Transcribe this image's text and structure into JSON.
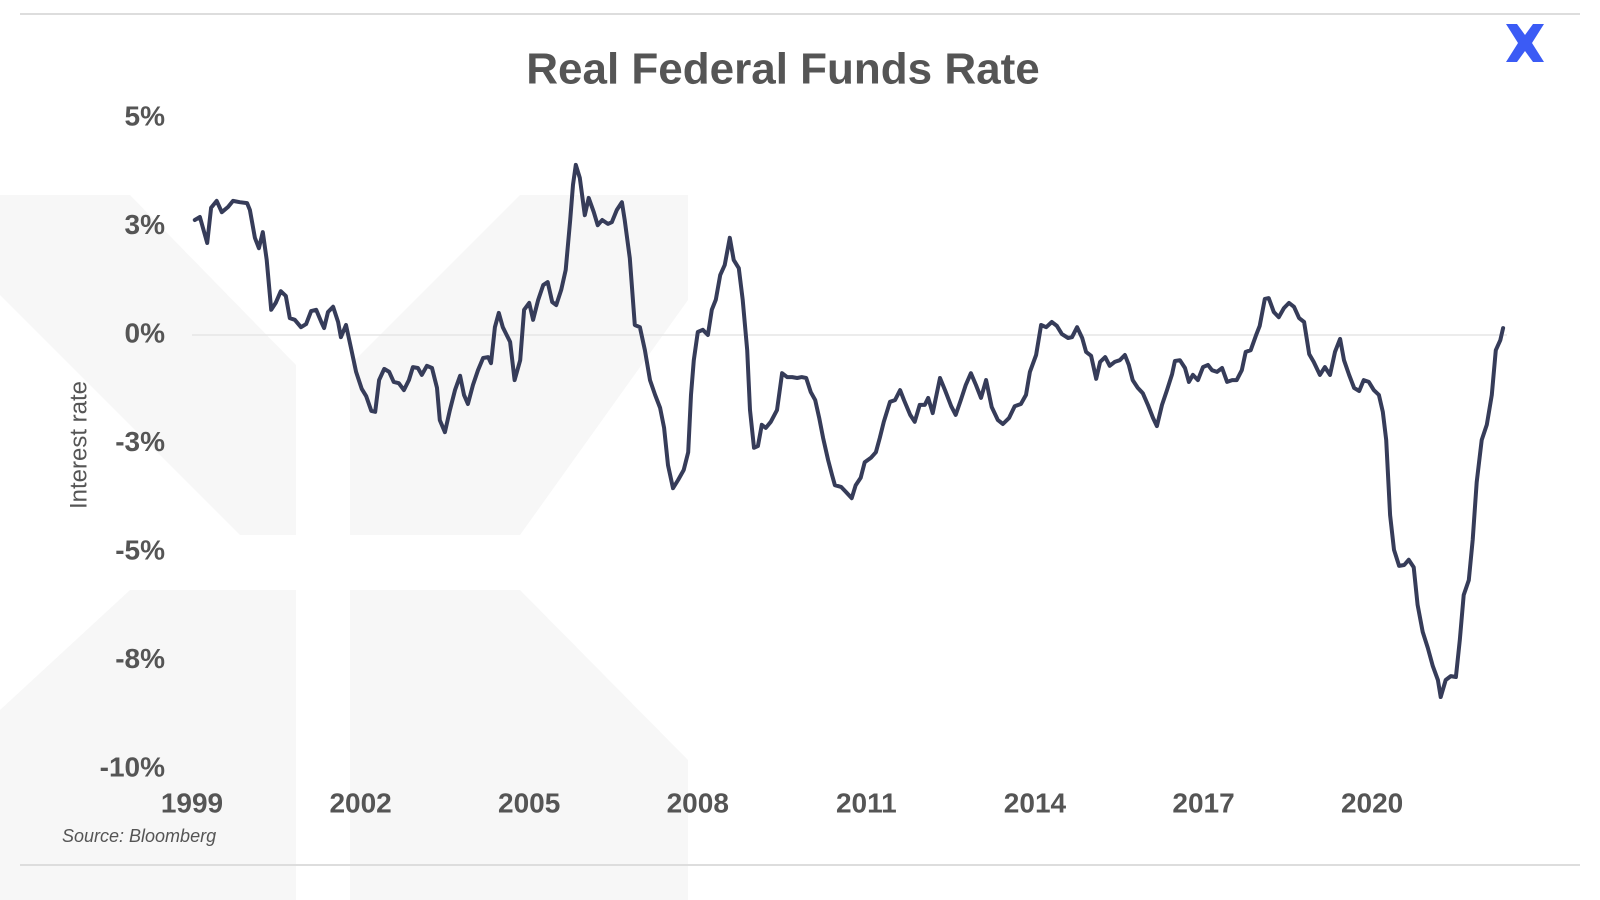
{
  "chart_data": {
    "type": "line",
    "title": "Real Federal Funds Rate",
    "y_label": "Interest rate",
    "source": "Source: Bloomberg",
    "color": "#363c59",
    "zero_line": true,
    "grid": false,
    "xlim": [
      1999,
      2022.4
    ],
    "xticks": [
      1999,
      2002,
      2005,
      2008,
      2011,
      2014,
      2017,
      2020
    ],
    "ylim": [
      -10,
      5
    ],
    "yticks": [
      {
        "value": 5,
        "label": "5%"
      },
      {
        "value": 2.5,
        "label": "3%"
      },
      {
        "value": 0,
        "label": "0%"
      },
      {
        "value": -2.5,
        "label": "-3%"
      },
      {
        "value": -5,
        "label": "-5%"
      },
      {
        "value": -7.5,
        "label": "-8%"
      },
      {
        "value": -10,
        "label": "-10%"
      }
    ],
    "x": [
      1999.05,
      1999.14,
      1999.27,
      1999.34,
      1999.44,
      1999.53,
      1999.64,
      1999.73,
      1999.85,
      1999.98,
      2000.03,
      2000.12,
      2000.19,
      2000.26,
      2000.33,
      2000.41,
      2000.49,
      2000.58,
      2000.67,
      2000.74,
      2000.83,
      2000.94,
      2001.03,
      2001.12,
      2001.21,
      2001.3,
      2001.35,
      2001.42,
      2001.51,
      2001.6,
      2001.65,
      2001.74,
      2001.83,
      2001.92,
      2002.02,
      2002.1,
      2002.19,
      2002.26,
      2002.33,
      2002.42,
      2002.51,
      2002.59,
      2002.68,
      2002.77,
      2002.86,
      2002.93,
      2003.02,
      2003.09,
      2003.18,
      2003.27,
      2003.36,
      2003.41,
      2003.5,
      2003.59,
      2003.68,
      2003.77,
      2003.84,
      2003.91,
      2004.0,
      2004.09,
      2004.18,
      2004.27,
      2004.32,
      2004.39,
      2004.46,
      2004.53,
      2004.66,
      2004.74,
      2004.84,
      2004.91,
      2005.0,
      2005.07,
      2005.16,
      2005.25,
      2005.33,
      2005.41,
      2005.48,
      2005.57,
      2005.65,
      2005.73,
      2005.78,
      2005.83,
      2005.9,
      2005.99,
      2006.06,
      2006.15,
      2006.22,
      2006.3,
      2006.4,
      2006.47,
      2006.56,
      2006.65,
      2006.7,
      2006.79,
      2006.88,
      2006.97,
      2007.06,
      2007.15,
      2007.24,
      2007.33,
      2007.4,
      2007.47,
      2007.56,
      2007.65,
      2007.75,
      2007.83,
      2007.88,
      2007.93,
      2008.0,
      2008.09,
      2008.18,
      2008.25,
      2008.32,
      2008.4,
      2008.48,
      2008.57,
      2008.64,
      2008.73,
      2008.8,
      2008.88,
      2008.93,
      2009.0,
      2009.07,
      2009.14,
      2009.21,
      2009.3,
      2009.41,
      2009.5,
      2009.59,
      2009.68,
      2009.77,
      2009.85,
      2009.93,
      2010.01,
      2010.09,
      2010.16,
      2010.23,
      2010.32,
      2010.39,
      2010.44,
      2010.55,
      2010.64,
      2010.74,
      2010.81,
      2010.9,
      2010.97,
      2011.08,
      2011.17,
      2011.24,
      2011.31,
      2011.42,
      2011.51,
      2011.6,
      2011.67,
      2011.78,
      2011.86,
      2011.95,
      2012.04,
      2012.1,
      2012.18,
      2012.31,
      2012.4,
      2012.51,
      2012.59,
      2012.68,
      2012.77,
      2012.86,
      2012.95,
      2013.04,
      2013.13,
      2013.23,
      2013.34,
      2013.43,
      2013.54,
      2013.64,
      2013.75,
      2013.84,
      2013.91,
      2014.02,
      2014.11,
      2014.2,
      2014.3,
      2014.39,
      2014.48,
      2014.59,
      2014.66,
      2014.75,
      2014.84,
      2014.91,
      2015.0,
      2015.09,
      2015.16,
      2015.25,
      2015.33,
      2015.42,
      2015.51,
      2015.6,
      2015.67,
      2015.74,
      2015.83,
      2015.92,
      2016.01,
      2016.1,
      2016.17,
      2016.26,
      2016.35,
      2016.44,
      2016.49,
      2016.58,
      2016.67,
      2016.74,
      2016.81,
      2016.9,
      2016.99,
      2017.08,
      2017.15,
      2017.24,
      2017.33,
      2017.42,
      2017.51,
      2017.59,
      2017.68,
      2017.75,
      2017.84,
      2017.93,
      2018.0,
      2018.09,
      2018.16,
      2018.25,
      2018.34,
      2018.43,
      2018.52,
      2018.61,
      2018.7,
      2018.79,
      2018.88,
      2018.96,
      2019.07,
      2019.16,
      2019.25,
      2019.34,
      2019.43,
      2019.5,
      2019.59,
      2019.68,
      2019.77,
      2019.85,
      2019.94,
      2020.03,
      2020.12,
      2020.19,
      2020.25,
      2020.32,
      2020.39,
      2020.48,
      2020.57,
      2020.65,
      2020.74,
      2020.81,
      2020.9,
      2020.99,
      2021.08,
      2021.17,
      2021.22,
      2021.31,
      2021.4,
      2021.49,
      2021.56,
      2021.63,
      2021.72,
      2021.79,
      2021.86,
      2021.95,
      2022.04,
      2022.13,
      2022.2,
      2022.28,
      2022.33
    ],
    "values": [
      2.65,
      2.72,
      2.12,
      2.93,
      3.09,
      2.83,
      2.95,
      3.09,
      3.06,
      3.04,
      2.88,
      2.24,
      2.0,
      2.37,
      1.73,
      0.58,
      0.74,
      1.01,
      0.9,
      0.39,
      0.35,
      0.18,
      0.25,
      0.55,
      0.58,
      0.3,
      0.16,
      0.53,
      0.65,
      0.3,
      -0.05,
      0.23,
      -0.3,
      -0.85,
      -1.24,
      -1.41,
      -1.75,
      -1.77,
      -1.04,
      -0.78,
      -0.85,
      -1.08,
      -1.11,
      -1.27,
      -1.04,
      -0.74,
      -0.76,
      -0.92,
      -0.71,
      -0.76,
      -1.22,
      -1.96,
      -2.24,
      -1.73,
      -1.27,
      -0.94,
      -1.38,
      -1.59,
      -1.15,
      -0.81,
      -0.53,
      -0.51,
      -0.65,
      0.18,
      0.51,
      0.18,
      -0.16,
      -1.04,
      -0.58,
      0.58,
      0.74,
      0.35,
      0.81,
      1.15,
      1.22,
      0.76,
      0.69,
      1.04,
      1.5,
      2.65,
      3.46,
      3.92,
      3.62,
      2.76,
      3.16,
      2.83,
      2.53,
      2.65,
      2.56,
      2.6,
      2.88,
      3.06,
      2.65,
      1.77,
      0.23,
      0.18,
      -0.35,
      -1.04,
      -1.38,
      -1.68,
      -2.14,
      -3.0,
      -3.53,
      -3.34,
      -3.11,
      -2.7,
      -1.38,
      -0.58,
      0.07,
      0.12,
      0.0,
      0.58,
      0.81,
      1.38,
      1.61,
      2.24,
      1.73,
      1.54,
      0.81,
      -0.35,
      -1.73,
      -2.6,
      -2.56,
      -2.07,
      -2.14,
      -2.0,
      -1.73,
      -0.88,
      -0.97,
      -0.97,
      -0.99,
      -0.97,
      -0.99,
      -1.31,
      -1.5,
      -1.91,
      -2.37,
      -2.88,
      -3.23,
      -3.46,
      -3.5,
      -3.62,
      -3.76,
      -3.46,
      -3.29,
      -2.93,
      -2.83,
      -2.7,
      -2.37,
      -2.0,
      -1.54,
      -1.5,
      -1.27,
      -1.5,
      -1.84,
      -2.0,
      -1.61,
      -1.61,
      -1.45,
      -1.8,
      -0.99,
      -1.27,
      -1.64,
      -1.84,
      -1.5,
      -1.15,
      -0.88,
      -1.15,
      -1.45,
      -1.04,
      -1.66,
      -1.96,
      -2.05,
      -1.91,
      -1.64,
      -1.59,
      -1.38,
      -0.85,
      -0.46,
      0.23,
      0.18,
      0.3,
      0.21,
      0.02,
      -0.07,
      -0.05,
      0.18,
      -0.07,
      -0.39,
      -0.48,
      -1.01,
      -0.62,
      -0.51,
      -0.71,
      -0.62,
      -0.58,
      -0.46,
      -0.69,
      -1.04,
      -1.22,
      -1.34,
      -1.61,
      -1.91,
      -2.1,
      -1.61,
      -1.27,
      -0.9,
      -0.6,
      -0.58,
      -0.76,
      -1.08,
      -0.92,
      -1.04,
      -0.74,
      -0.69,
      -0.81,
      -0.85,
      -0.76,
      -1.08,
      -1.04,
      -1.04,
      -0.81,
      -0.39,
      -0.35,
      -0.02,
      0.21,
      0.83,
      0.85,
      0.53,
      0.41,
      0.62,
      0.74,
      0.65,
      0.39,
      0.3,
      -0.44,
      -0.62,
      -0.92,
      -0.74,
      -0.92,
      -0.39,
      -0.09,
      -0.58,
      -0.92,
      -1.22,
      -1.29,
      -1.04,
      -1.08,
      -1.27,
      -1.38,
      -1.77,
      -2.42,
      -4.15,
      -4.95,
      -5.32,
      -5.3,
      -5.18,
      -5.35,
      -6.22,
      -6.84,
      -7.21,
      -7.63,
      -7.95,
      -8.34,
      -7.95,
      -7.86,
      -7.88,
      -7.03,
      -5.99,
      -5.65,
      -4.72,
      -3.39,
      -2.42,
      -2.07,
      -1.38,
      -0.35,
      -0.12,
      0.16
    ]
  }
}
